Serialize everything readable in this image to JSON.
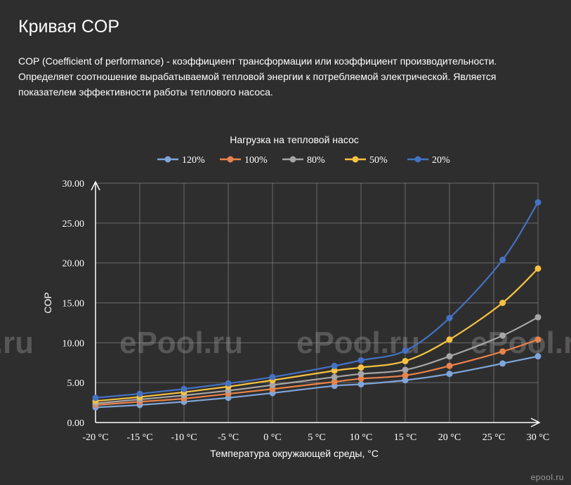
{
  "page": {
    "title": "Кривая COP",
    "description": "COP (Coefficient of performance) - коэффициент трансформации или коэффициент производительности. Определяет соотношение вырабатываемой тепловой энергии к потребляемой электрической. Является показателем эффективности работы теплового насоса."
  },
  "watermark": "ePool.ru",
  "corner_mark": "epool.ru",
  "chart_data": {
    "type": "line",
    "title": "Нагрузка на тепловой насос",
    "xlabel": "Температура окружающей среды, °C",
    "ylabel": "COP",
    "ylim": [
      0,
      30
    ],
    "xlim": [
      -20,
      30
    ],
    "x_ticks": [
      {
        "value": -20,
        "label": "-20 °C"
      },
      {
        "value": -15,
        "label": "-15 °C"
      },
      {
        "value": -10,
        "label": "-10 °C"
      },
      {
        "value": -5,
        "label": "-5 °C"
      },
      {
        "value": 0,
        "label": "0 °C"
      },
      {
        "value": 5,
        "label": "5 °C"
      },
      {
        "value": 10,
        "label": "10 °C"
      },
      {
        "value": 15,
        "label": "15 °C"
      },
      {
        "value": 20,
        "label": "20 °C"
      },
      {
        "value": 25,
        "label": "25 °C"
      },
      {
        "value": 30,
        "label": "30 °C"
      }
    ],
    "y_ticks": [
      {
        "value": 0,
        "label": "0.00"
      },
      {
        "value": 5,
        "label": "5.00"
      },
      {
        "value": 10,
        "label": "10.00"
      },
      {
        "value": 15,
        "label": "15.00"
      },
      {
        "value": 20,
        "label": "20.00"
      },
      {
        "value": 25,
        "label": "25.00"
      },
      {
        "value": 30,
        "label": "30.00"
      }
    ],
    "grid": true,
    "legend_position": "top",
    "x": [
      -20,
      -15,
      -10,
      -5,
      0,
      7,
      10,
      15,
      20,
      26,
      30
    ],
    "series": [
      {
        "name": "120%",
        "color": "#7ea6d9",
        "values": [
          1.9,
          2.2,
          2.6,
          3.1,
          3.7,
          4.6,
          4.8,
          5.3,
          6.1,
          7.4,
          8.3
        ]
      },
      {
        "name": "100%",
        "color": "#e8834c",
        "values": [
          2.2,
          2.6,
          3.0,
          3.6,
          4.2,
          5.1,
          5.5,
          5.9,
          7.1,
          8.9,
          10.4
        ]
      },
      {
        "name": "80%",
        "color": "#a6a6a6",
        "values": [
          2.4,
          2.9,
          3.4,
          4.0,
          4.7,
          5.7,
          6.1,
          6.6,
          8.3,
          10.9,
          13.2
        ]
      },
      {
        "name": "50%",
        "color": "#f5c242",
        "values": [
          2.7,
          3.2,
          3.8,
          4.5,
          5.3,
          6.5,
          6.9,
          7.7,
          10.4,
          15.0,
          19.3
        ]
      },
      {
        "name": "20%",
        "color": "#4472c4",
        "values": [
          3.1,
          3.6,
          4.2,
          4.9,
          5.7,
          7.1,
          7.8,
          9.0,
          13.1,
          20.4,
          27.6
        ]
      }
    ]
  }
}
